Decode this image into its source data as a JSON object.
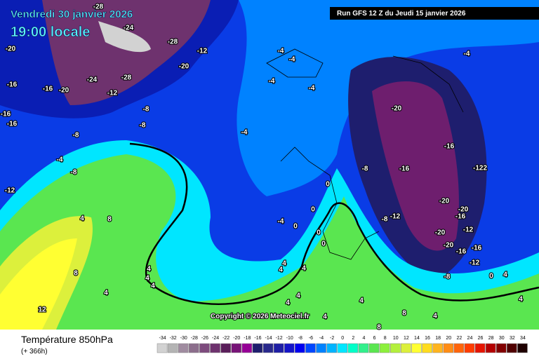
{
  "header": {
    "date": "Vendredi 30 janvier 2026",
    "time": "19:00 locale"
  },
  "run": "Run GFS 12 Z du Jeudi 15 janvier 2026",
  "copyright": "Copyright © 2026 Meteociel.fr",
  "legend": {
    "title": "Température 850hPa",
    "subtitle": "(+ 366h)",
    "values": [
      -34,
      -32,
      -30,
      -28,
      -26,
      -24,
      -22,
      -20,
      -18,
      -16,
      -14,
      -12,
      -10,
      -8,
      -6,
      -4,
      -2,
      0,
      2,
      4,
      6,
      8,
      10,
      12,
      14,
      16,
      18,
      20,
      22,
      24,
      26,
      28,
      30,
      32,
      34
    ],
    "colors": [
      "#d2d2d2",
      "#b4b4b4",
      "#a08ca0",
      "#8c6e8c",
      "#7d4b7d",
      "#6e326e",
      "#5a1e5a",
      "#781478",
      "#960096",
      "#1e1e6e",
      "#28288c",
      "#1e1ea5",
      "#1414c8",
      "#0000f0",
      "#0046ff",
      "#0082ff",
      "#00b4ff",
      "#00e6ff",
      "#00ffc8",
      "#32f08c",
      "#5ae650",
      "#8cf03c",
      "#b4f03c",
      "#dcf03c",
      "#ffff32",
      "#ffdc1e",
      "#ffb41e",
      "#ff8c14",
      "#ff640a",
      "#ff3c00",
      "#e61400",
      "#b40000",
      "#820000",
      "#500000",
      "#1e0000"
    ]
  },
  "labels": [
    "-28",
    "-24",
    "-20",
    "-28",
    "-12",
    "-20",
    "-16",
    "-16",
    "-20",
    "-24",
    "-28",
    "-12",
    "-8",
    "-8",
    "-16",
    "-16",
    "-8",
    "-4",
    "-4",
    "-4",
    "-4",
    "-4",
    "-4",
    "-20",
    "-16",
    "-16",
    "-122",
    "-8",
    "-4",
    "-8",
    "-12",
    "4",
    "8",
    "0",
    "0",
    "-4",
    "0",
    "0",
    "0",
    "-8",
    "-12",
    "-20",
    "-20",
    "-16",
    "-12",
    "-20",
    "-20",
    "-16",
    "-16",
    "-12",
    "-8",
    "0",
    "4",
    "8",
    "4",
    "4",
    "4",
    "4",
    "12",
    "4",
    "4",
    "4",
    "4",
    "4",
    "4",
    "4",
    "8",
    "4",
    "4",
    "8"
  ]
}
